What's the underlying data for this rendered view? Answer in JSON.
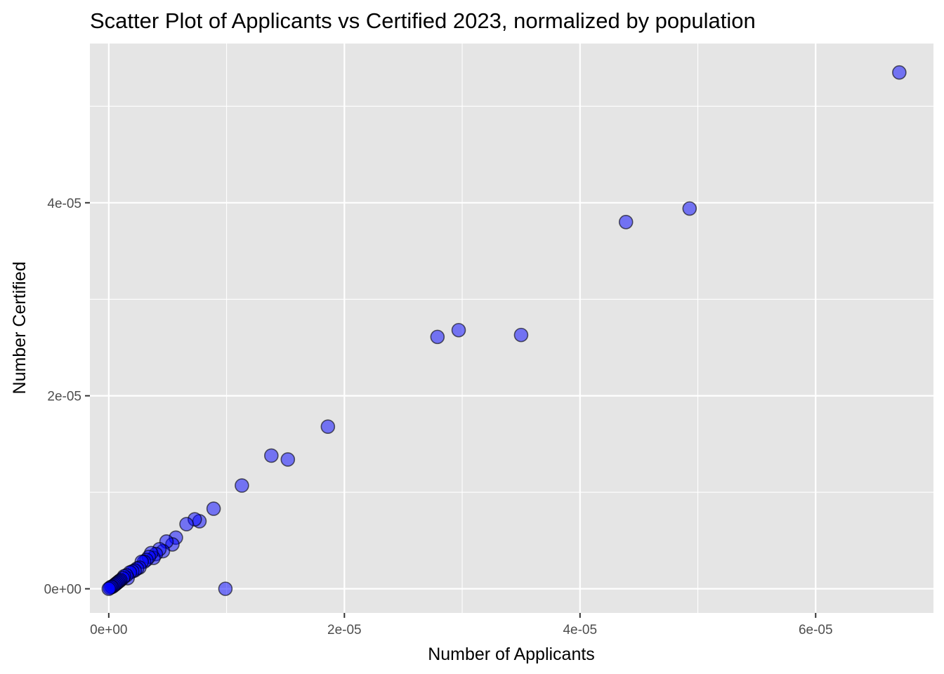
{
  "chart_data": {
    "type": "scatter",
    "title": "Scatter Plot of Applicants vs Certified 2023, normalized by population",
    "xlabel": "Number of Applicants",
    "ylabel": "Number Certified",
    "xlim": [
      -1.6e-06,
      7e-05
    ],
    "ylim": [
      -2.5e-06,
      5.65e-05
    ],
    "x_ticks": [
      0,
      2e-05,
      4e-05,
      6e-05
    ],
    "x_tick_labels": [
      "0e+00",
      "2e-05",
      "4e-05",
      "6e-05"
    ],
    "y_ticks": [
      0,
      2e-05,
      4e-05
    ],
    "y_tick_labels": [
      "0e+00",
      "2e-05",
      "4e-05"
    ],
    "grid": true,
    "legend": "none",
    "colors": {
      "panel": "#e5e5e5",
      "point_fill": "#0000ff",
      "point_alpha": 0.5,
      "point_stroke": "#000000"
    },
    "x": [
      6.71e-05,
      4.93e-05,
      4.39e-05,
      3.5e-05,
      2.97e-05,
      2.79e-05,
      1.86e-05,
      1.52e-05,
      1.38e-05,
      1.13e-05,
      9.9e-06,
      8.9e-06,
      7.7e-06,
      7.3e-06,
      6.6e-06,
      5.7e-06,
      5.4e-06,
      4.9e-06,
      4.6e-06,
      4.3e-06,
      4e-06,
      3.8e-06,
      3.6e-06,
      3.4e-06,
      3.2e-06,
      3e-06,
      2.8e-06,
      2.6e-06,
      2.4e-06,
      2.2e-06,
      2e-06,
      1.8e-06,
      1.6e-06,
      1.5e-06,
      1.3e-06,
      1.2e-06,
      1e-06,
      9e-07,
      8e-07,
      7e-07,
      6e-07,
      5e-07,
      4e-07,
      3e-07,
      2e-07,
      1e-07,
      0.0
    ],
    "y": [
      5.35e-05,
      3.94e-05,
      3.8e-05,
      2.63e-05,
      2.68e-05,
      2.61e-05,
      1.68e-05,
      1.34e-05,
      1.38e-05,
      1.07e-05,
      0.0,
      8.3e-06,
      7e-06,
      7.2e-06,
      6.7e-06,
      5.3e-06,
      4.6e-06,
      4.9e-06,
      3.9e-06,
      4.1e-06,
      3.6e-06,
      3.2e-06,
      3.7e-06,
      3.3e-06,
      3e-06,
      2.8e-06,
      2.8e-06,
      2.2e-06,
      2.1e-06,
      1.9e-06,
      1.8e-06,
      1.7e-06,
      1.1e-06,
      1.4e-06,
      1.3e-06,
      1.1e-06,
      9e-07,
      8e-07,
      7e-07,
      6e-07,
      5e-07,
      4e-07,
      3e-07,
      2e-07,
      2e-07,
      1e-07,
      0.0
    ]
  }
}
